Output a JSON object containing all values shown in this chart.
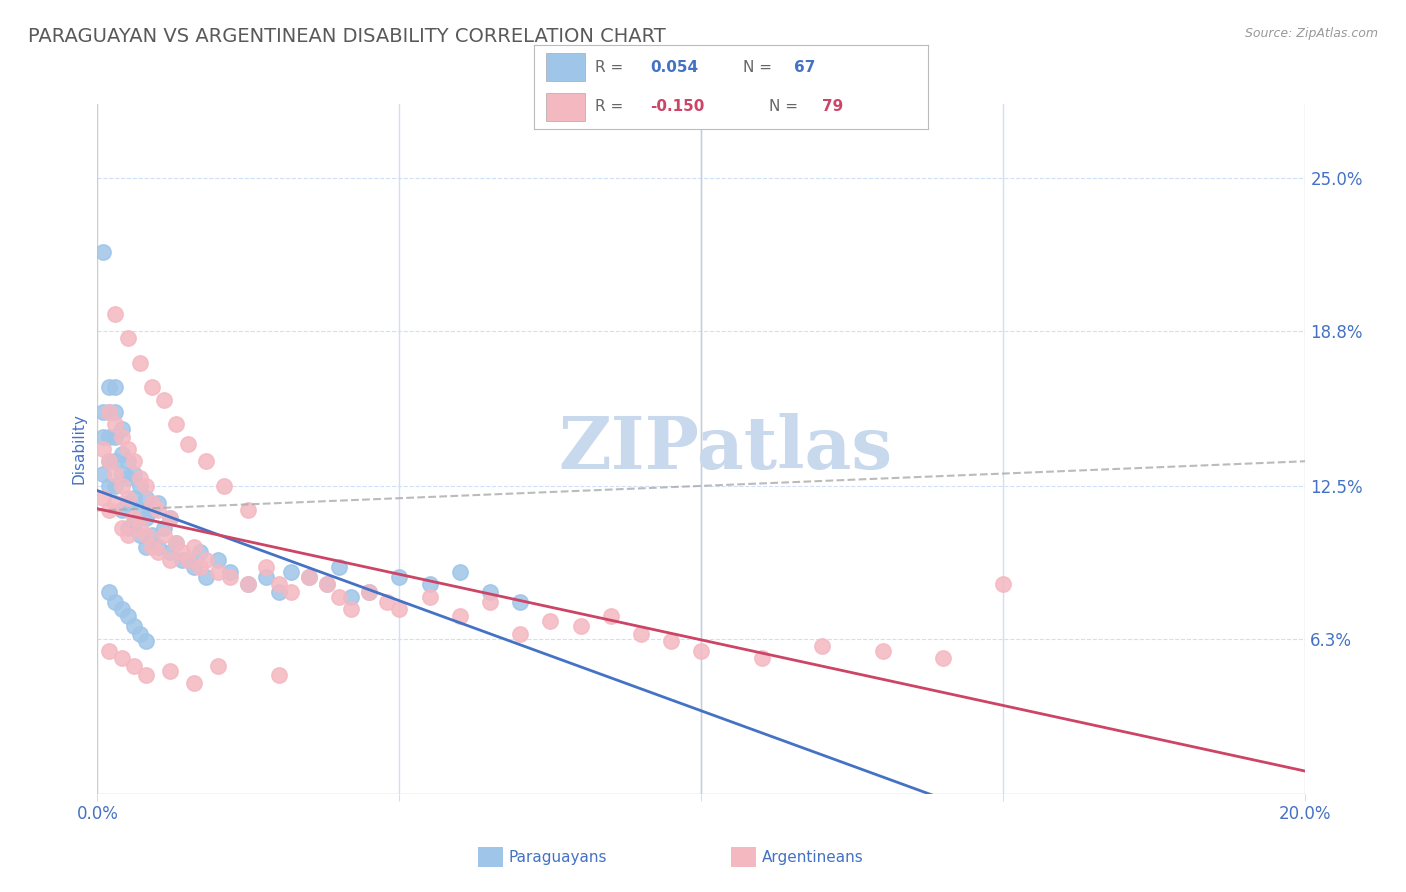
{
  "title": "PARAGUAYAN VS ARGENTINEAN DISABILITY CORRELATION CHART",
  "source": "Source: ZipAtlas.com",
  "ylabel": "Disability",
  "xmin": 0.0,
  "xmax": 0.2,
  "ymin": 0.0,
  "ymax": 0.28,
  "yticks": [
    0.063,
    0.125,
    0.188,
    0.25
  ],
  "ytick_labels": [
    "6.3%",
    "12.5%",
    "18.8%",
    "25.0%"
  ],
  "xtick_labels_edge": [
    "0.0%",
    "20.0%"
  ],
  "paraguayan_R": 0.054,
  "paraguayan_N": 67,
  "argentinean_R": -0.15,
  "argentinean_N": 79,
  "blue_color": "#9fc5e8",
  "blue_dark": "#4472c4",
  "pink_color": "#f4b8c1",
  "pink_dark": "#cc4466",
  "blue_line_color": "#4472c4",
  "pink_line_color": "#cc4466",
  "gray_dash_color": "#aaaaaa",
  "title_color": "#595959",
  "axis_tick_color": "#4472c4",
  "grid_color": "#d0dff8",
  "background_color": "#ffffff",
  "watermark": "ZIPatlas",
  "watermark_color": "#c8d8ed",
  "paraguayan_x": [
    0.001,
    0.001,
    0.001,
    0.001,
    0.002,
    0.002,
    0.002,
    0.002,
    0.002,
    0.003,
    0.003,
    0.003,
    0.003,
    0.003,
    0.004,
    0.004,
    0.004,
    0.004,
    0.005,
    0.005,
    0.005,
    0.005,
    0.006,
    0.006,
    0.006,
    0.007,
    0.007,
    0.007,
    0.008,
    0.008,
    0.008,
    0.009,
    0.009,
    0.01,
    0.01,
    0.011,
    0.012,
    0.012,
    0.013,
    0.014,
    0.015,
    0.016,
    0.017,
    0.018,
    0.02,
    0.022,
    0.025,
    0.028,
    0.03,
    0.032,
    0.035,
    0.038,
    0.04,
    0.042,
    0.045,
    0.05,
    0.055,
    0.06,
    0.065,
    0.07,
    0.002,
    0.003,
    0.004,
    0.005,
    0.006,
    0.007,
    0.008
  ],
  "paraguayan_y": [
    0.22,
    0.155,
    0.145,
    0.13,
    0.165,
    0.155,
    0.145,
    0.135,
    0.125,
    0.165,
    0.155,
    0.145,
    0.135,
    0.125,
    0.148,
    0.138,
    0.13,
    0.115,
    0.135,
    0.128,
    0.118,
    0.108,
    0.13,
    0.12,
    0.11,
    0.125,
    0.115,
    0.105,
    0.12,
    0.112,
    0.1,
    0.115,
    0.105,
    0.118,
    0.1,
    0.108,
    0.112,
    0.098,
    0.102,
    0.095,
    0.095,
    0.092,
    0.098,
    0.088,
    0.095,
    0.09,
    0.085,
    0.088,
    0.082,
    0.09,
    0.088,
    0.085,
    0.092,
    0.08,
    0.082,
    0.088,
    0.085,
    0.09,
    0.082,
    0.078,
    0.082,
    0.078,
    0.075,
    0.072,
    0.068,
    0.065,
    0.062
  ],
  "argentinean_x": [
    0.001,
    0.001,
    0.002,
    0.002,
    0.002,
    0.003,
    0.003,
    0.003,
    0.004,
    0.004,
    0.004,
    0.005,
    0.005,
    0.005,
    0.006,
    0.006,
    0.007,
    0.007,
    0.008,
    0.008,
    0.009,
    0.009,
    0.01,
    0.01,
    0.011,
    0.012,
    0.012,
    0.013,
    0.014,
    0.015,
    0.016,
    0.017,
    0.018,
    0.02,
    0.022,
    0.025,
    0.028,
    0.03,
    0.032,
    0.035,
    0.038,
    0.04,
    0.042,
    0.045,
    0.048,
    0.05,
    0.055,
    0.06,
    0.065,
    0.07,
    0.075,
    0.08,
    0.085,
    0.09,
    0.095,
    0.1,
    0.11,
    0.12,
    0.13,
    0.14,
    0.003,
    0.005,
    0.007,
    0.009,
    0.011,
    0.013,
    0.015,
    0.018,
    0.021,
    0.025,
    0.002,
    0.004,
    0.006,
    0.008,
    0.012,
    0.016,
    0.02,
    0.03,
    0.15
  ],
  "argentinean_y": [
    0.14,
    0.12,
    0.155,
    0.135,
    0.115,
    0.15,
    0.13,
    0.118,
    0.145,
    0.125,
    0.108,
    0.14,
    0.12,
    0.105,
    0.135,
    0.112,
    0.128,
    0.108,
    0.125,
    0.105,
    0.118,
    0.1,
    0.115,
    0.098,
    0.105,
    0.112,
    0.095,
    0.102,
    0.098,
    0.095,
    0.1,
    0.092,
    0.095,
    0.09,
    0.088,
    0.085,
    0.092,
    0.085,
    0.082,
    0.088,
    0.085,
    0.08,
    0.075,
    0.082,
    0.078,
    0.075,
    0.08,
    0.072,
    0.078,
    0.065,
    0.07,
    0.068,
    0.072,
    0.065,
    0.062,
    0.058,
    0.055,
    0.06,
    0.058,
    0.055,
    0.195,
    0.185,
    0.175,
    0.165,
    0.16,
    0.15,
    0.142,
    0.135,
    0.125,
    0.115,
    0.058,
    0.055,
    0.052,
    0.048,
    0.05,
    0.045,
    0.052,
    0.048,
    0.085
  ]
}
